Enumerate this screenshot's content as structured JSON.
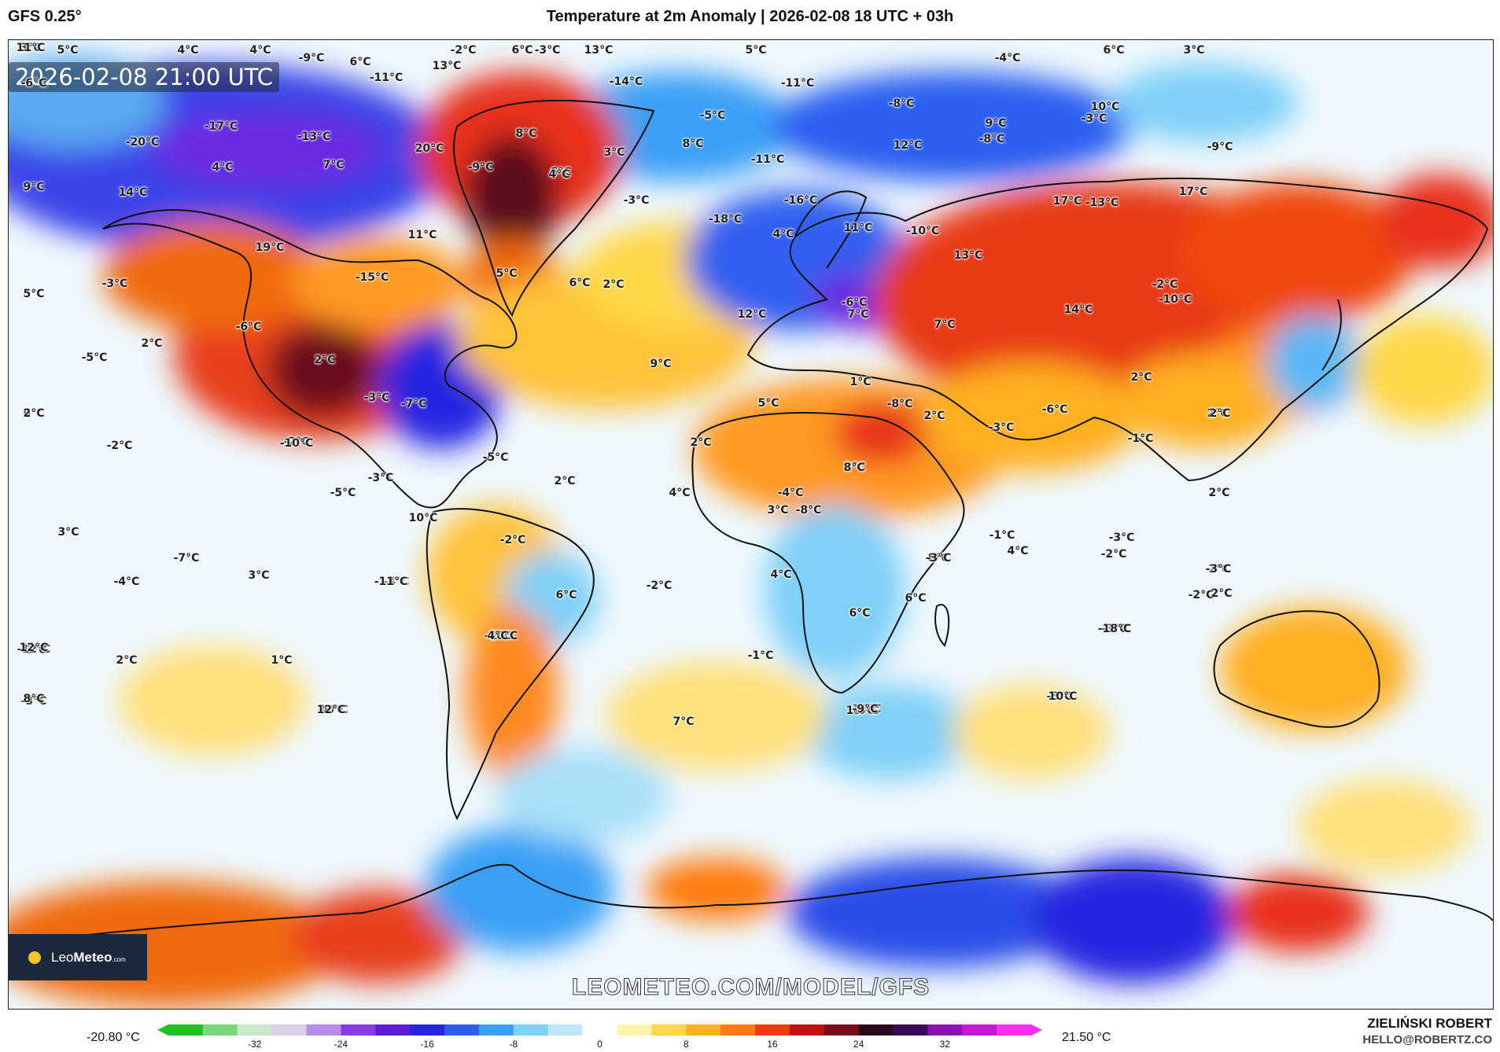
{
  "header": {
    "model": "GFS 0.25°",
    "title": "Temperature at 2m Anomaly | 2026-02-08 18 UTC + 03h"
  },
  "map": {
    "timestamp": "2026-02-08 21:00 UTC",
    "watermark": "LEOMETEO.COM/MODEL/GFS",
    "logo": {
      "name_a": "Leo",
      "name_b": "Meteo",
      "suffix": ".com"
    },
    "labels": [
      {
        "t": "5°C"
      },
      {
        "t": "4°C"
      },
      {
        "t": "4°C"
      },
      {
        "t": "-9°C"
      },
      {
        "t": "6°C"
      },
      {
        "t": "-11°C"
      },
      {
        "t": "-2°C"
      },
      {
        "t": "6°C"
      },
      {
        "t": "-3°C"
      },
      {
        "t": "13°C"
      },
      {
        "t": "13°C"
      },
      {
        "t": "5°C"
      },
      {
        "t": "-4°C"
      },
      {
        "t": "6°C"
      },
      {
        "t": "3°C"
      },
      {
        "t": "-6°C"
      },
      {
        "t": "-14°C"
      },
      {
        "t": "-11°C"
      },
      {
        "t": "-8°C"
      },
      {
        "t": "10°C"
      },
      {
        "t": "-3°C"
      },
      {
        "t": "-5°C"
      },
      {
        "t": "-17°C"
      },
      {
        "t": "9°C"
      },
      {
        "t": "-8°C"
      },
      {
        "t": "8°C"
      },
      {
        "t": "-13°C"
      },
      {
        "t": "8°C"
      },
      {
        "t": "-20°C"
      },
      {
        "t": "20°C"
      },
      {
        "t": "12°C"
      },
      {
        "t": "-9°C"
      },
      {
        "t": "-11°C"
      },
      {
        "t": "4°C"
      },
      {
        "t": "7°C"
      },
      {
        "t": "-9°C"
      },
      {
        "t": "3°C"
      },
      {
        "t": "6°C"
      },
      {
        "t": "4°C"
      },
      {
        "t": "9°C"
      },
      {
        "t": "14°C"
      },
      {
        "t": "17°C"
      },
      {
        "t": "-16°C"
      },
      {
        "t": "17°C"
      },
      {
        "t": "-13°C"
      },
      {
        "t": "-3°C"
      },
      {
        "t": "-18°C"
      },
      {
        "t": "11°C"
      },
      {
        "t": "4°C"
      },
      {
        "t": "11°C"
      },
      {
        "t": "-10°C"
      },
      {
        "t": "19°C"
      },
      {
        "t": "13°C"
      },
      {
        "t": "-15°C"
      },
      {
        "t": "5°C"
      },
      {
        "t": "-3°C"
      },
      {
        "t": "6°C"
      },
      {
        "t": "2°C"
      },
      {
        "t": "5°C"
      },
      {
        "t": "-6°C"
      },
      {
        "t": "-2°C"
      },
      {
        "t": "14°C"
      },
      {
        "t": "-10°C"
      },
      {
        "t": "7°C"
      },
      {
        "t": "12°C"
      },
      {
        "t": "7°C"
      },
      {
        "t": "-6°C"
      },
      {
        "t": "2°C"
      },
      {
        "t": "-5°C"
      },
      {
        "t": "2°C"
      },
      {
        "t": "9°C"
      },
      {
        "t": "1°C"
      },
      {
        "t": "2°C"
      },
      {
        "t": "6°C"
      },
      {
        "t": "2°C"
      },
      {
        "t": "-3°C"
      },
      {
        "t": "5°C"
      },
      {
        "t": "-8°C"
      },
      {
        "t": "2°C"
      },
      {
        "t": "-6°C"
      },
      {
        "t": "-7°C"
      },
      {
        "t": "2°C"
      },
      {
        "t": "-2°C"
      },
      {
        "t": "-3°C"
      },
      {
        "t": "-1°C"
      },
      {
        "t": "-2°C"
      },
      {
        "t": "-10°C"
      },
      {
        "t": "-5°C"
      },
      {
        "t": "2°C"
      },
      {
        "t": "-3°C"
      },
      {
        "t": "-5°C"
      },
      {
        "t": "2°C"
      },
      {
        "t": "2°C"
      },
      {
        "t": "2°C"
      },
      {
        "t": "4°C"
      },
      {
        "t": "-4°C"
      },
      {
        "t": "2°C"
      },
      {
        "t": "8°C"
      },
      {
        "t": "-8°C"
      },
      {
        "t": "3°C"
      },
      {
        "t": "10°C"
      },
      {
        "t": "-1°C"
      },
      {
        "t": "-3°C"
      },
      {
        "t": "4°C"
      },
      {
        "t": "-2°C"
      },
      {
        "t": "3°C"
      },
      {
        "t": "8°C"
      },
      {
        "t": "2°C"
      },
      {
        "t": "-2°C"
      },
      {
        "t": "-2°C"
      },
      {
        "t": "-7°C"
      },
      {
        "t": "4°C"
      },
      {
        "t": "6°C"
      },
      {
        "t": "-4°C"
      },
      {
        "t": "3°C"
      },
      {
        "t": "-4°C"
      },
      {
        "t": "6°C"
      },
      {
        "t": "-2°C"
      },
      {
        "t": "6°C"
      },
      {
        "t": "-3°C"
      },
      {
        "t": "2°C"
      },
      {
        "t": "-3°C"
      },
      {
        "t": "-3°C"
      },
      {
        "t": "2°C"
      },
      {
        "t": "-2°C"
      },
      {
        "t": "-3°C"
      },
      {
        "t": "2°C"
      },
      {
        "t": "1°C"
      },
      {
        "t": "-10°C"
      },
      {
        "t": "-12°C"
      },
      {
        "t": "-18°C"
      },
      {
        "t": "-3°C"
      },
      {
        "t": "-11°C"
      },
      {
        "t": "10°C"
      },
      {
        "t": "-14°C"
      },
      {
        "t": "8°C"
      },
      {
        "t": "13°C"
      },
      {
        "t": "4°C"
      },
      {
        "t": "-1°C"
      },
      {
        "t": "12°C"
      },
      {
        "t": "-8°C"
      },
      {
        "t": "-8°C"
      },
      {
        "t": "-6°C"
      },
      {
        "t": "10°C"
      },
      {
        "t": "12°C"
      },
      {
        "t": "7°C"
      },
      {
        "t": "-9°C"
      },
      {
        "t": "3°C"
      },
      {
        "t": "11°C"
      }
    ]
  },
  "scale": {
    "min_label": "-20.80 °C",
    "max_label": "21.50 °C",
    "ticks": [
      "-32",
      "-24",
      "-16",
      "-8",
      "0",
      "8",
      "16",
      "24",
      "32"
    ],
    "colors": [
      "#1fc21f",
      "#7ad67a",
      "#c9e9c9",
      "#d8d0e8",
      "#b98ee8",
      "#8a3ce0",
      "#5a1ad8",
      "#2626e0",
      "#2a5ef0",
      "#3aa0f5",
      "#7fd0f7",
      "#bfe9fb",
      "#ffffff",
      "#fff3b0",
      "#ffd84a",
      "#ffb020",
      "#ff7a10",
      "#f03a10",
      "#c41010",
      "#7a0a1a",
      "#2a0a1a",
      "#3a0a5a",
      "#8a12b0",
      "#c41ad8",
      "#ff2ef0"
    ]
  },
  "credit": {
    "author": "ZIELIŃSKI ROBERT",
    "email": "HELLO@ROBERTZ.CO"
  }
}
